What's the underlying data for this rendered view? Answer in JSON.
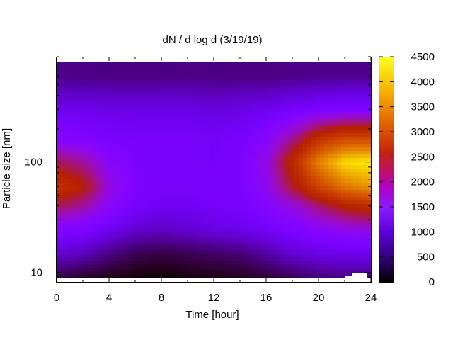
{
  "chart_data": {
    "type": "heatmap",
    "title": "dN / d log d (3/19/19)",
    "xlabel": "Time [hour]",
    "ylabel": "Particle size [nm]",
    "xlim": [
      0,
      24
    ],
    "ylim": [
      8.2,
      900
    ],
    "y_scale": "log",
    "x_ticks": [
      0,
      4,
      8,
      12,
      16,
      20,
      24
    ],
    "x_tick_labels": [
      "0",
      "4",
      "8",
      "12",
      "16",
      "20",
      "24"
    ],
    "y_ticks": [
      10,
      100
    ],
    "y_tick_labels": [
      "10",
      "100"
    ],
    "colorbar": {
      "range": [
        0,
        4500
      ],
      "ticks": [
        0,
        500,
        1000,
        1500,
        2000,
        2500,
        3000,
        3500,
        4000,
        4500
      ],
      "tick_labels": [
        "0",
        "500",
        "1000",
        "1500",
        "2000",
        "2500",
        "3000",
        "3500",
        "4000",
        "4500"
      ],
      "palette": "gnuplot-rgbformulae-7-5-15",
      "colors": [
        "#000000",
        "#4a00b0",
        "#8a20ff",
        "#c8105a",
        "#e04010",
        "#ffe020"
      ]
    },
    "time_hours": [
      0,
      2,
      4,
      6,
      8,
      10,
      12,
      14,
      16,
      18,
      20,
      22,
      24
    ],
    "size_nm": [
      9,
      15,
      25,
      40,
      60,
      100,
      160,
      300,
      600
    ],
    "values": [
      [
        200,
        120,
        60,
        20,
        10,
        30,
        60,
        80,
        150,
        250,
        350,
        400,
        380
      ],
      [
        700,
        600,
        400,
        250,
        200,
        250,
        300,
        350,
        500,
        700,
        800,
        850,
        850
      ],
      [
        1200,
        1100,
        900,
        700,
        650,
        700,
        800,
        850,
        950,
        1100,
        1300,
        1450,
        1500
      ],
      [
        2000,
        1800,
        1300,
        1000,
        900,
        900,
        950,
        1000,
        1200,
        1500,
        1900,
        2300,
        2500
      ],
      [
        2600,
        2300,
        1500,
        1100,
        1000,
        1000,
        1000,
        1050,
        1400,
        2100,
        2900,
        3500,
        3800
      ],
      [
        2000,
        1800,
        1300,
        1050,
        1000,
        1000,
        950,
        1050,
        1450,
        2400,
        3600,
        4300,
        4400
      ],
      [
        1200,
        1150,
        1050,
        1000,
        1000,
        1000,
        950,
        1000,
        1250,
        1800,
        2600,
        3000,
        3000
      ],
      [
        850,
        850,
        800,
        800,
        800,
        800,
        750,
        800,
        850,
        950,
        1050,
        1100,
        1100
      ],
      [
        400,
        400,
        380,
        380,
        380,
        400,
        380,
        380,
        380,
        400,
        420,
        420,
        420
      ]
    ]
  }
}
